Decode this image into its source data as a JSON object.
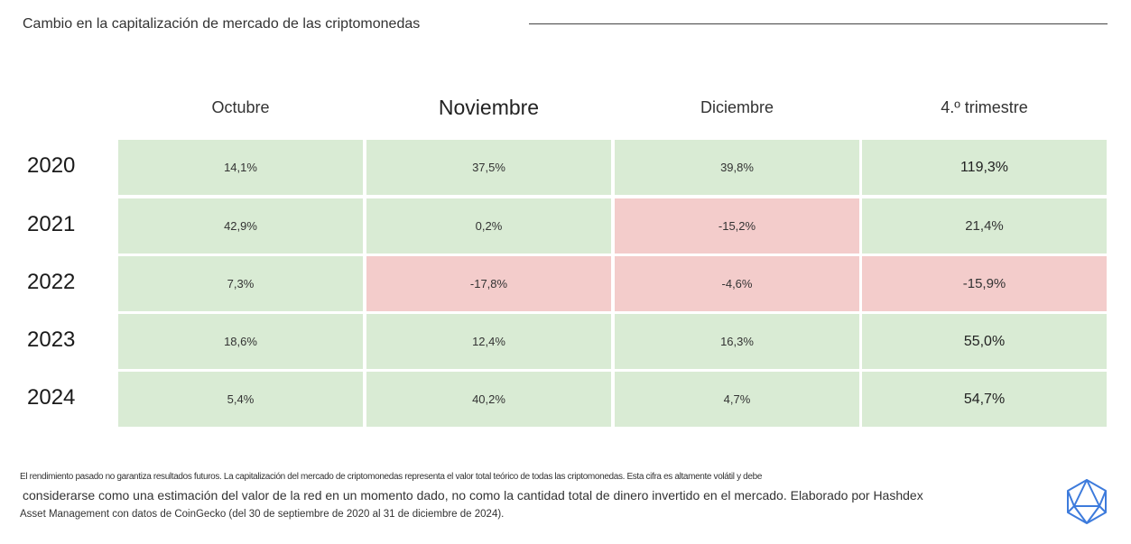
{
  "title": "Cambio en la capitalización de mercado de las criptomonedas",
  "colors": {
    "positive": "#d9ebd4",
    "negative": "#f3cccb",
    "logo": "#3d7bdc"
  },
  "chart_data": {
    "type": "table",
    "title": "Cambio en la capitalización de mercado de las criptomonedas",
    "columns": [
      "Octubre",
      "Noviembre",
      "Diciembre",
      "4.º trimestre"
    ],
    "emphasized_column": "Noviembre",
    "rows": [
      {
        "year": "2020",
        "values": [
          "14,1%",
          "37,5%",
          "39,8%",
          "119,3%"
        ],
        "numeric": [
          14.1,
          37.5,
          39.8,
          119.3
        ]
      },
      {
        "year": "2021",
        "values": [
          "42,9%",
          "0,2%",
          "-15,2%",
          "21,4%"
        ],
        "numeric": [
          42.9,
          0.2,
          -15.2,
          21.4
        ]
      },
      {
        "year": "2022",
        "values": [
          "7,3%",
          "-17,8%",
          "-4,6%",
          "-15,9%"
        ],
        "numeric": [
          7.3,
          -17.8,
          -4.6,
          -15.9
        ]
      },
      {
        "year": "2023",
        "values": [
          "18,6%",
          "12,4%",
          "16,3%",
          "55,0%"
        ],
        "numeric": [
          18.6,
          12.4,
          16.3,
          55.0
        ]
      },
      {
        "year": "2024",
        "values": [
          "5,4%",
          "40,2%",
          "4,7%",
          "54,7%"
        ],
        "numeric": [
          5.4,
          40.2,
          4.7,
          54.7
        ]
      }
    ]
  },
  "footnote": {
    "line1": "El rendimiento pasado no garantiza resultados futuros. La capitalización del mercado de criptomonedas representa el valor total teórico de todas las criptomonedas. Esta cifra es altamente volátil y debe",
    "line2": "considerarse como una estimación del valor de la red en un momento dado, no como la cantidad total de dinero invertido en el mercado. Elaborado por Hashdex",
    "line3": "Asset Management con datos de CoinGecko (del 30 de septiembre de 2020 al 31 de diciembre de 2024)."
  },
  "logo": {
    "icon": "hashdex-logo-icon"
  }
}
